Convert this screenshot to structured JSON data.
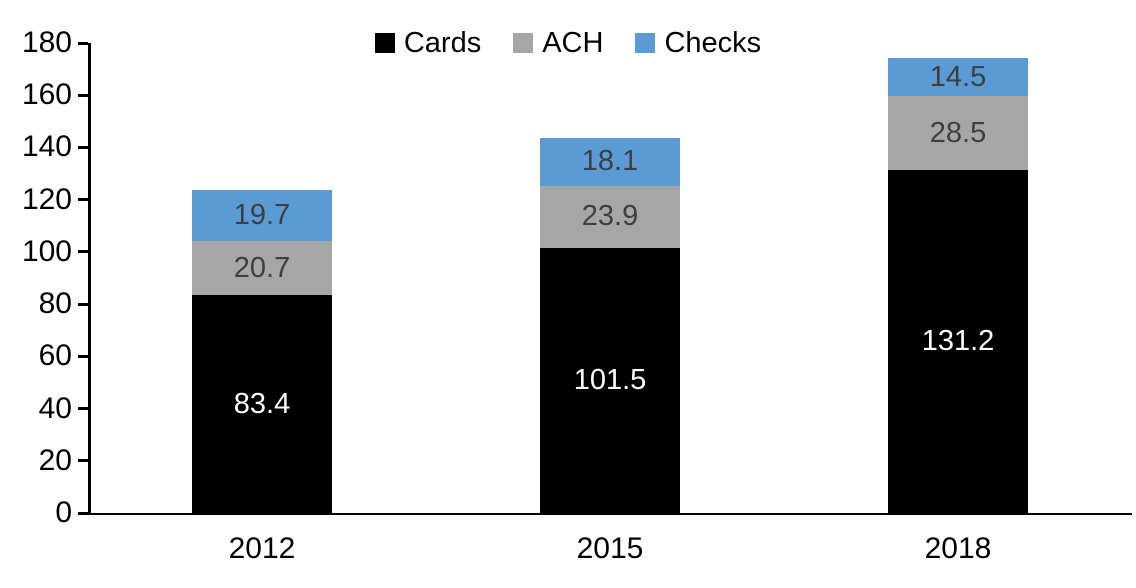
{
  "chart_data": {
    "type": "bar",
    "stacked": true,
    "title": "",
    "xlabel": "",
    "ylabel": "",
    "categories": [
      "2012",
      "2015",
      "2018"
    ],
    "series": [
      {
        "name": "Cards",
        "values": [
          83.4,
          101.5,
          131.2
        ],
        "color": "#000000",
        "label_color": "#ffffff"
      },
      {
        "name": "ACH",
        "values": [
          20.7,
          23.9,
          28.5
        ],
        "color": "#a6a6a6",
        "label_color": "#3f3f3f"
      },
      {
        "name": "Checks",
        "values": [
          19.7,
          18.1,
          14.5
        ],
        "color": "#5b9bd5",
        "label_color": "#3f3f3f"
      }
    ],
    "ylim": [
      0,
      180
    ],
    "yticks": [
      0,
      20,
      40,
      60,
      80,
      100,
      120,
      140,
      160,
      180
    ],
    "legend_position": "top-center",
    "grid": false,
    "axis_color": "#000000"
  }
}
